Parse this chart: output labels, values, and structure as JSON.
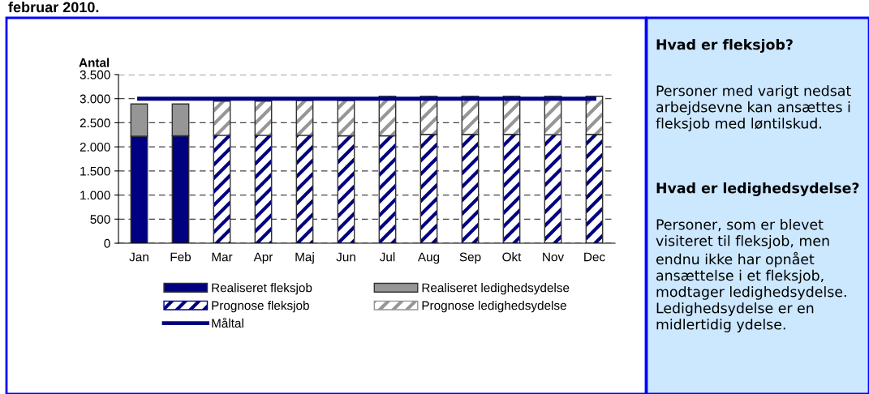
{
  "chart_data": {
    "type": "bar",
    "title": "februar 2010.",
    "ylabel": "Antal",
    "categories": [
      "Jan",
      "Feb",
      "Mar",
      "Apr",
      "Maj",
      "Jun",
      "Jul",
      "Aug",
      "Sep",
      "Okt",
      "Nov",
      "Dec"
    ],
    "stacked": true,
    "series": [
      {
        "name": "Realiseret fleksjob",
        "color": "#000080",
        "values": [
          2220,
          2230,
          null,
          null,
          null,
          null,
          null,
          null,
          null,
          null,
          null,
          null
        ]
      },
      {
        "name": "Prognose fleksjob",
        "color": "#000080",
        "values": [
          null,
          null,
          2240,
          2240,
          2240,
          2230,
          2230,
          2260,
          2260,
          2260,
          2250,
          2260
        ]
      },
      {
        "name": "Realiseret ledighedsydelse",
        "color": "#969696",
        "values": [
          670,
          660,
          null,
          null,
          null,
          null,
          null,
          null,
          null,
          null,
          null,
          null
        ]
      },
      {
        "name": "Prognose ledighedsydelse",
        "color": "#969696",
        "values": [
          null,
          null,
          710,
          710,
          720,
          730,
          820,
          790,
          790,
          790,
          800,
          790
        ]
      },
      {
        "name": "Måltal",
        "type": "line",
        "color": "#000080",
        "values": [
          3000,
          3000,
          3000,
          3000,
          3000,
          3000,
          3000,
          3000,
          3000,
          3000,
          3000,
          3000
        ]
      }
    ],
    "ylim": [
      0,
      3500
    ],
    "yticks": [
      {
        "value": 0,
        "label": "0"
      },
      {
        "value": 500,
        "label": "500"
      },
      {
        "value": 1000,
        "label": "1.000"
      },
      {
        "value": 1500,
        "label": "1.500"
      },
      {
        "value": 2000,
        "label": "2.000"
      },
      {
        "value": 2500,
        "label": "2.500"
      },
      {
        "value": 3000,
        "label": "3.000"
      },
      {
        "value": 3500,
        "label": "3.500"
      }
    ],
    "grid": "y",
    "legend": "bottom",
    "line_style": "solid",
    "marker": "none",
    "annotations": [
      "Hvad er fleksjob?",
      "Personer med varigt nedsat arbejdsevne kan ansættes i fleksjob med løntilskud.",
      "Hvad er ledighedsydelse?",
      "Personer, som er blevet visiteret til fleksjob, men endnu ikke har opnået ansættelse i et fleksjob, modtager ledighedsydelse. Ledighedsydelse er en midlertidig ydelse."
    ]
  }
}
